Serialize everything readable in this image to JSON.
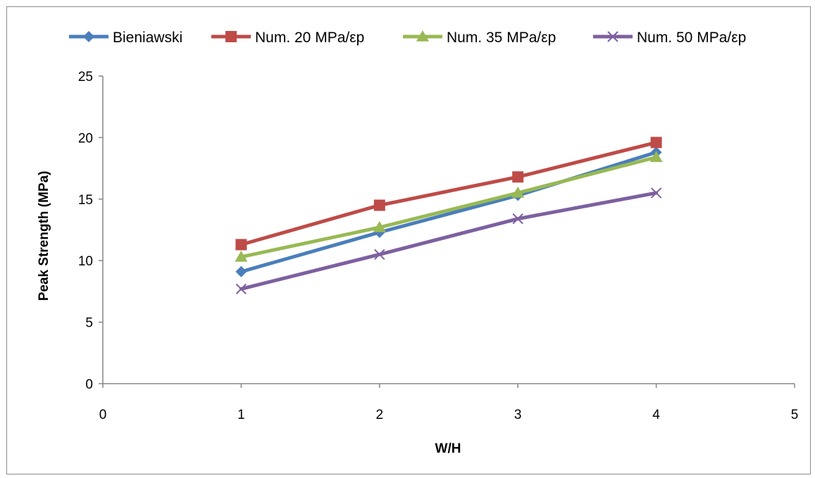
{
  "chart_data": {
    "type": "line",
    "title": "",
    "xlabel": "W/H",
    "ylabel": "Peak Strength (MPa)",
    "xlim": [
      0,
      5
    ],
    "ylim": [
      0,
      25
    ],
    "xticks": [
      "0",
      "1",
      "2",
      "3",
      "4",
      "5"
    ],
    "yticks": [
      "0",
      "5",
      "10",
      "15",
      "20",
      "25"
    ],
    "grid": false,
    "legend_position": "top",
    "x": [
      1,
      2,
      3,
      4
    ],
    "series": [
      {
        "name": "Bieniawski",
        "values": [
          9.1,
          12.3,
          15.3,
          18.8
        ],
        "color": "#4a7ebb",
        "marker": "diamond"
      },
      {
        "name": "Num. 20 MPa/εp",
        "values": [
          11.3,
          14.5,
          16.8,
          19.6
        ],
        "color": "#be4b48",
        "marker": "square"
      },
      {
        "name": "Num. 35 MPa/εp",
        "values": [
          10.3,
          12.7,
          15.5,
          18.4
        ],
        "color": "#98b954",
        "marker": "triangle"
      },
      {
        "name": "Num. 50 MPa/εp",
        "values": [
          7.7,
          10.5,
          13.4,
          15.5
        ],
        "color": "#7d60a0",
        "marker": "x"
      }
    ]
  }
}
